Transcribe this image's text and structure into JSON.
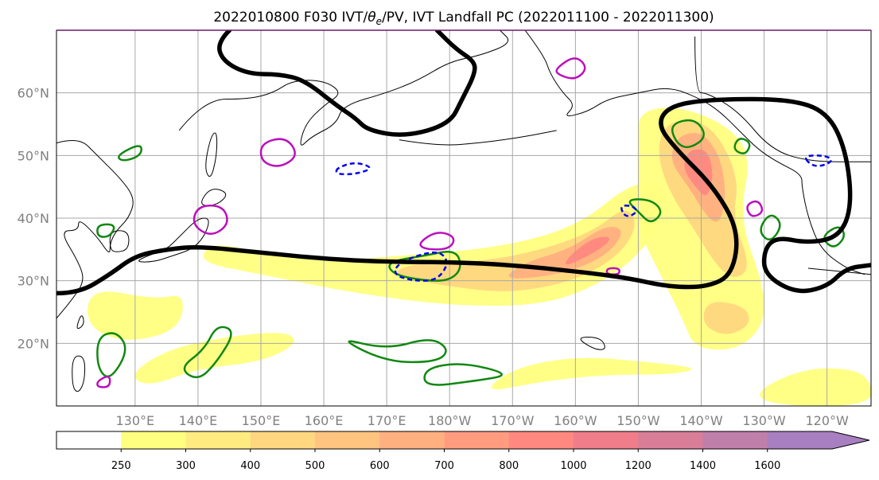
{
  "chart_data": {
    "type": "map",
    "title": "2022010800 F030 IVT/θₑ/PV, IVT Landfall PC (2022011100 - 2022011300)",
    "title_parts": {
      "prefix": "2022010800 F030 IVT/",
      "theta": "θ",
      "sub": "e",
      "suffix": "/PV, IVT Landfall PC (2022011100 - 2022011300)"
    },
    "lon_range": [
      117.5,
      247
    ],
    "lat_range": [
      10,
      70
    ],
    "x_ticks": [
      {
        "lon": 130,
        "label": "130°E"
      },
      {
        "lon": 140,
        "label": "140°E"
      },
      {
        "lon": 150,
        "label": "150°E"
      },
      {
        "lon": 160,
        "label": "160°E"
      },
      {
        "lon": 170,
        "label": "170°E"
      },
      {
        "lon": 180,
        "label": "180°W"
      },
      {
        "lon": 190,
        "label": "170°W"
      },
      {
        "lon": 200,
        "label": "160°W"
      },
      {
        "lon": 210,
        "label": "150°W"
      },
      {
        "lon": 220,
        "label": "140°W"
      },
      {
        "lon": 230,
        "label": "130°W"
      },
      {
        "lon": 240,
        "label": "120°W"
      }
    ],
    "y_ticks": [
      {
        "lat": 20,
        "label": "20°N"
      },
      {
        "lat": 30,
        "label": "30°N"
      },
      {
        "lat": 40,
        "label": "40°N"
      },
      {
        "lat": 50,
        "label": "50°N"
      },
      {
        "lat": 60,
        "label": "60°N"
      }
    ],
    "grid": true,
    "colorbar": {
      "levels": [
        "250",
        "300",
        "400",
        "500",
        "600",
        "700",
        "800",
        "1000",
        "1200",
        "1400",
        "1600"
      ],
      "colors": [
        "#ffff80",
        "#ffeb80",
        "#ffd780",
        "#ffc480",
        "#ffb080",
        "#ff9c80",
        "#ff8880",
        "#f07d8a",
        "#d97e98",
        "#bf7fab",
        "#a87fc0"
      ],
      "extend": "max"
    },
    "ivt_shading": [
      {
        "level": 250,
        "polygons": [
          [
            [
              140,
              33
            ],
            [
              150,
              31
            ],
            [
              165,
              28
            ],
            [
              180,
              26
            ],
            [
              195,
              26
            ],
            [
              205,
              30
            ],
            [
              212,
              36
            ],
            [
              214,
              43
            ],
            [
              213,
              46
            ],
            [
              208,
              45
            ],
            [
              202,
              40
            ],
            [
              195,
              37
            ],
            [
              185,
              35
            ],
            [
              172,
              34
            ],
            [
              160,
              33
            ],
            [
              148,
              35
            ],
            [
              142,
              36
            ]
          ],
          [
            [
              210,
              57
            ],
            [
              216,
              58
            ],
            [
              224,
              55
            ],
            [
              228,
              50
            ],
            [
              226,
              40
            ],
            [
              230,
              29
            ],
            [
              230,
              23
            ],
            [
              226,
              19
            ],
            [
              219,
              19
            ],
            [
              217,
              24
            ],
            [
              214,
              30
            ],
            [
              210,
              38
            ],
            [
              210,
              45
            ],
            [
              210,
              52
            ]
          ],
          [
            [
              123,
              29
            ],
            [
              133,
              27
            ],
            [
              138,
              28
            ],
            [
              137,
              22
            ],
            [
              128,
              20
            ],
            [
              122,
              23
            ]
          ],
          [
            [
              132,
              13
            ],
            [
              140,
              16
            ],
            [
              150,
              17
            ],
            [
              156,
              20
            ],
            [
              154,
              22
            ],
            [
              144,
              21
            ],
            [
              135,
              19
            ],
            [
              129,
              15
            ]
          ],
          [
            [
              185,
              12
            ],
            [
              195,
              14
            ],
            [
              205,
              15
            ],
            [
              215,
              15
            ],
            [
              220,
              16
            ],
            [
              212,
              17
            ],
            [
              200,
              18
            ],
            [
              190,
              16
            ]
          ],
          [
            [
              228,
              12
            ],
            [
              236,
              16
            ],
            [
              244,
              16
            ],
            [
              247,
              14
            ],
            [
              247,
              10
            ],
            [
              232,
              10
            ]
          ]
        ]
      },
      {
        "level": 400,
        "polygons": [
          [
            [
              170,
              31
            ],
            [
              180,
              29
            ],
            [
              190,
              28
            ],
            [
              200,
              30
            ],
            [
              207,
              34
            ],
            [
              210,
              39
            ],
            [
              208,
              42
            ],
            [
              203,
              38
            ],
            [
              195,
              35
            ],
            [
              185,
              33
            ],
            [
              175,
              33
            ]
          ],
          [
            [
              214,
              55
            ],
            [
              219,
              56
            ],
            [
              223,
              53
            ],
            [
              226,
              46
            ],
            [
              225,
              40
            ],
            [
              228,
              32
            ],
            [
              225,
              30
            ],
            [
              222,
              33
            ],
            [
              219,
              38
            ],
            [
              215,
              44
            ],
            [
              213,
              50
            ]
          ],
          [
            [
              221,
              27
            ],
            [
              227,
              26
            ],
            [
              228,
              23
            ],
            [
              224,
              21
            ],
            [
              220,
              23
            ]
          ]
        ]
      },
      {
        "level": 600,
        "polygons": [
          [
            [
              188,
              30
            ],
            [
              198,
              31
            ],
            [
              205,
              34
            ],
            [
              208,
              38
            ],
            [
              205,
              39
            ],
            [
              199,
              35
            ],
            [
              192,
              33
            ]
          ],
          [
            [
              216,
              53
            ],
            [
              220,
              54
            ],
            [
              223,
              50
            ],
            [
              224,
              44
            ],
            [
              223,
              39
            ],
            [
              221,
              40
            ],
            [
              218,
              45
            ],
            [
              215,
              49
            ]
          ]
        ]
      },
      {
        "level": 800,
        "polygons": [
          [
            [
              198,
              32
            ],
            [
              204,
              35
            ],
            [
              206,
              37
            ],
            [
              203,
              37
            ],
            [
              199,
              34
            ]
          ],
          [
            [
              218,
              51
            ],
            [
              221,
              51
            ],
            [
              222,
              47
            ],
            [
              221,
              43
            ],
            [
              219,
              45
            ],
            [
              217,
              48
            ]
          ]
        ]
      }
    ],
    "pv2_contour": [
      {
        "segment": [
          [
            117.5,
            28
          ],
          [
            121,
            28
          ],
          [
            126,
            31
          ],
          [
            130,
            34
          ],
          [
            135,
            35
          ],
          [
            140,
            35.5
          ],
          [
            150,
            34.5
          ],
          [
            160,
            33.5
          ],
          [
            170,
            33
          ],
          [
            180,
            33
          ],
          [
            190,
            32.5
          ],
          [
            200,
            31.5
          ],
          [
            208,
            30.5
          ],
          [
            215,
            29
          ],
          [
            221,
            29
          ],
          [
            225,
            31
          ],
          [
            226,
            38
          ],
          [
            222,
            45
          ],
          [
            216,
            51
          ],
          [
            213,
            55
          ],
          [
            215,
            58
          ],
          [
            222,
            59
          ],
          [
            234,
            59
          ],
          [
            240,
            57
          ],
          [
            243,
            51
          ],
          [
            244,
            42
          ],
          [
            242,
            37
          ],
          [
            237,
            36
          ],
          [
            232,
            37
          ],
          [
            230,
            35
          ],
          [
            230,
            31
          ],
          [
            235,
            28
          ],
          [
            240,
            29
          ],
          [
            243,
            32
          ],
          [
            247,
            32.5
          ]
        ]
      },
      {
        "segment": [
          [
            145,
            70
          ],
          [
            143,
            68
          ],
          [
            144,
            65
          ],
          [
            148,
            63
          ],
          [
            153,
            63
          ],
          [
            157,
            62
          ],
          [
            162,
            58
          ],
          [
            165,
            56
          ],
          [
            167,
            54
          ],
          [
            173,
            53
          ],
          [
            180,
            55
          ],
          [
            182,
            59
          ],
          [
            184,
            63
          ],
          [
            184,
            65
          ],
          [
            181,
            67
          ],
          [
            178,
            70
          ]
        ]
      }
    ],
    "theta_contours": [
      [
        [
          126,
          14
        ],
        [
          129,
          19
        ],
        [
          127,
          22
        ],
        [
          124,
          21
        ],
        [
          124,
          16
        ]
      ],
      [
        [
          137,
          16
        ],
        [
          141,
          19
        ],
        [
          143,
          23
        ],
        [
          146,
          22
        ],
        [
          143,
          17
        ],
        [
          140,
          14
        ]
      ],
      [
        [
          162,
          21
        ],
        [
          170,
          19
        ],
        [
          177,
          21
        ],
        [
          180,
          19
        ],
        [
          178,
          17
        ],
        [
          170,
          17
        ]
      ],
      [
        [
          170,
          33
        ],
        [
          176,
          34
        ],
        [
          181,
          35
        ],
        [
          182,
          32
        ],
        [
          180,
          30
        ],
        [
          176,
          30
        ],
        [
          171,
          31
        ]
      ],
      [
        [
          208,
          43
        ],
        [
          212,
          43
        ],
        [
          214,
          41
        ],
        [
          212,
          39
        ],
        [
          210,
          41
        ]
      ],
      [
        [
          215,
          55
        ],
        [
          219,
          56
        ],
        [
          221,
          53
        ],
        [
          218,
          51
        ],
        [
          216,
          52
        ]
      ],
      [
        [
          226,
          53
        ],
        [
          228,
          52
        ],
        [
          227,
          50
        ],
        [
          225,
          51
        ]
      ],
      [
        [
          229,
          38
        ],
        [
          231,
          41
        ],
        [
          233,
          39
        ],
        [
          231,
          36
        ]
      ],
      [
        [
          239,
          37
        ],
        [
          242,
          39
        ],
        [
          243,
          37
        ],
        [
          241,
          35
        ]
      ],
      [
        [
          176,
          13
        ],
        [
          184,
          14
        ],
        [
          190,
          15
        ],
        [
          182,
          17
        ],
        [
          176,
          16
        ]
      ],
      [
        [
          124,
          39
        ],
        [
          127,
          39
        ],
        [
          126,
          37
        ],
        [
          124,
          37
        ]
      ],
      [
        [
          127,
          50
        ],
        [
          131,
          52
        ],
        [
          131,
          50
        ],
        [
          128,
          49
        ]
      ]
    ],
    "pv_contours": [
      [
        [
          140,
          42
        ],
        [
          144,
          42
        ],
        [
          145,
          39
        ],
        [
          142,
          37
        ],
        [
          139,
          39
        ]
      ],
      [
        [
          150,
          52
        ],
        [
          154,
          53
        ],
        [
          156,
          50
        ],
        [
          153,
          48
        ],
        [
          150,
          49
        ]
      ],
      [
        [
          175,
          36
        ],
        [
          178,
          38
        ],
        [
          181,
          37
        ],
        [
          180,
          35
        ],
        [
          176,
          35
        ]
      ],
      [
        [
          197,
          64
        ],
        [
          200,
          66
        ],
        [
          202,
          64
        ],
        [
          200,
          62
        ],
        [
          197,
          63
        ]
      ],
      [
        [
          227,
          42
        ],
        [
          229,
          43
        ],
        [
          230,
          41
        ],
        [
          228,
          40
        ]
      ],
      [
        [
          124,
          14
        ],
        [
          126,
          15
        ],
        [
          126,
          13
        ],
        [
          124,
          13
        ]
      ],
      [
        [
          205,
          32
        ],
        [
          207,
          32
        ],
        [
          207,
          31
        ],
        [
          205,
          31
        ]
      ]
    ],
    "neg_contours": [
      [
        [
          172,
          33
        ],
        [
          178,
          35
        ],
        [
          180,
          33
        ],
        [
          178,
          30
        ],
        [
          174,
          30
        ],
        [
          171,
          31
        ]
      ],
      [
        [
          162,
          48
        ],
        [
          165,
          49
        ],
        [
          168,
          48
        ],
        [
          165,
          47
        ],
        [
          162,
          47
        ]
      ],
      [
        [
          207,
          42
        ],
        [
          209,
          42
        ],
        [
          210,
          41
        ],
        [
          208,
          40
        ]
      ],
      [
        [
          236,
          50
        ],
        [
          240,
          50
        ],
        [
          241,
          49
        ],
        [
          238,
          48
        ]
      ]
    ]
  }
}
